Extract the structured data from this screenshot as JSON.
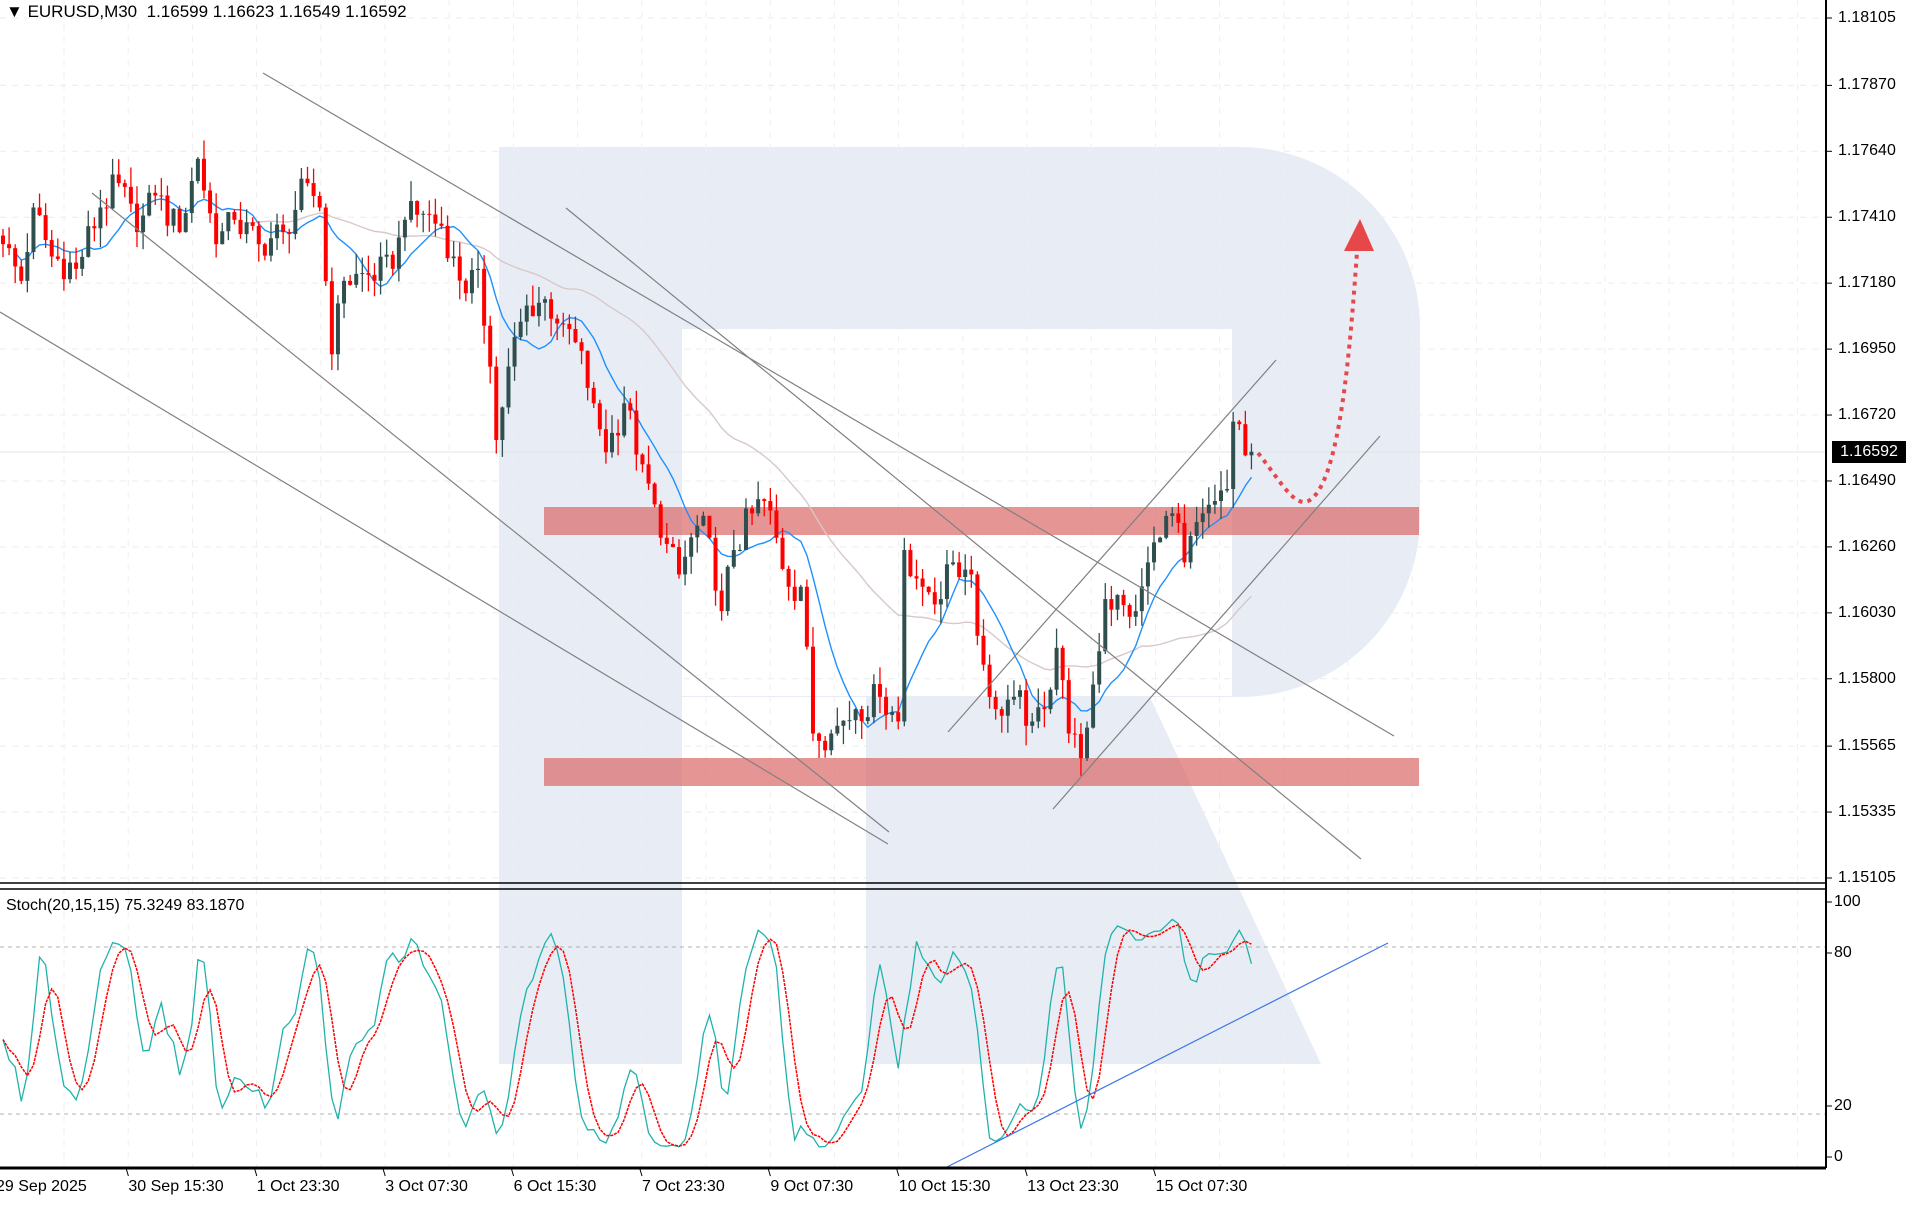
{
  "header": {
    "symbol_label": "EURUSD,M30",
    "open": "1.16599",
    "high": "1.16623",
    "low": "1.16549",
    "close": "1.16592"
  },
  "current_price": "1.16592",
  "indicator": {
    "label": "Stoch(20,15,15)",
    "k_value": "75.3249",
    "d_value": "83.1870",
    "axis_ticks": [
      "100",
      "80",
      "20",
      "0"
    ],
    "levels": [
      80,
      20
    ]
  },
  "colors": {
    "bull_candle": "#2f4f4f",
    "bear_candle": "#ff0000",
    "ma_fast": "#1e90ff",
    "ma_slow": "#d8c8c8",
    "stoch_main": "#20b2aa",
    "stoch_signal": "#ff0000",
    "zone": "#d95c5c",
    "forecast_arrow": "#e8474a",
    "trendline": "#808080",
    "stoch_trendline": "#3c78e6",
    "watermark": "#e8edf5"
  },
  "chart_data": {
    "type": "candlestick",
    "title": "EURUSD,M30",
    "y_axis": {
      "ticks": [
        "1.18105",
        "1.17870",
        "1.17640",
        "1.17410",
        "1.17180",
        "1.16950",
        "1.16720",
        "1.16490",
        "1.16260",
        "1.16030",
        "1.15800",
        "1.15565",
        "1.15335",
        "1.15105"
      ],
      "range": [
        1.15105,
        1.18105
      ]
    },
    "x_axis": {
      "ticks": [
        "29 Sep 2025",
        "30 Sep 15:30",
        "1 Oct 23:30",
        "3 Oct 07:30",
        "6 Oct 15:30",
        "7 Oct 23:30",
        "9 Oct 07:30",
        "10 Oct 15:30",
        "13 Oct 23:30",
        "15 Oct 07:30"
      ]
    },
    "grid": true,
    "close_path": {
      "bar_index": [
        0,
        3,
        5,
        8,
        12,
        16,
        19,
        22,
        25,
        29,
        32,
        35,
        38,
        42,
        46,
        50,
        52,
        54,
        56,
        60,
        64,
        66,
        69,
        72,
        74,
        76,
        78,
        80,
        81,
        83,
        86,
        89,
        92,
        94,
        97,
        99,
        102,
        105,
        108,
        111,
        114,
        116,
        118,
        120,
        123,
        125,
        127,
        129,
        131,
        133,
        136,
        140,
        144,
        147,
        148,
        151,
        154,
        156,
        159,
        160,
        163,
        166,
        169,
        171,
        173,
        175,
        177,
        179,
        181,
        184,
        186,
        188,
        190,
        192,
        194,
        197,
        199,
        201,
        202,
        205
      ],
      "close": [
        1.17316,
        1.17188,
        1.17444,
        1.17273,
        1.1723,
        1.17444,
        1.17529,
        1.17358,
        1.17486,
        1.17358,
        1.17614,
        1.17316,
        1.17401,
        1.17316,
        1.17358,
        1.17529,
        1.17444,
        1.16932,
        1.17188,
        1.17209,
        1.1723,
        1.17401,
        1.17422,
        1.1738,
        1.17273,
        1.17145,
        1.1723,
        1.16889,
        1.16633,
        1.16889,
        1.17102,
        1.17124,
        1.17038,
        1.16974,
        1.16761,
        1.1659,
        1.16761,
        1.16548,
        1.16292,
        1.16164,
        1.16334,
        1.16292,
        1.16036,
        1.16249,
        1.16377,
        1.1642,
        1.16292,
        1.16121,
        1.16121,
        1.15609,
        1.15609,
        1.15694,
        1.15737,
        1.15651,
        1.16249,
        1.16121,
        1.16078,
        1.16206,
        1.16164,
        1.1595,
        1.15694,
        1.15737,
        1.15651,
        1.15694,
        1.15908,
        1.15609,
        1.15523,
        1.1578,
        1.16078,
        1.16057,
        1.16036,
        1.16206,
        1.16292,
        1.16377,
        1.16206,
        1.16377,
        1.1642,
        1.16462,
        1.16697,
        1.16592
      ]
    },
    "zones": [
      {
        "from": 1.1632,
        "to": 1.16395
      },
      {
        "from": 1.1544,
        "to": 1.15515
      }
    ]
  }
}
